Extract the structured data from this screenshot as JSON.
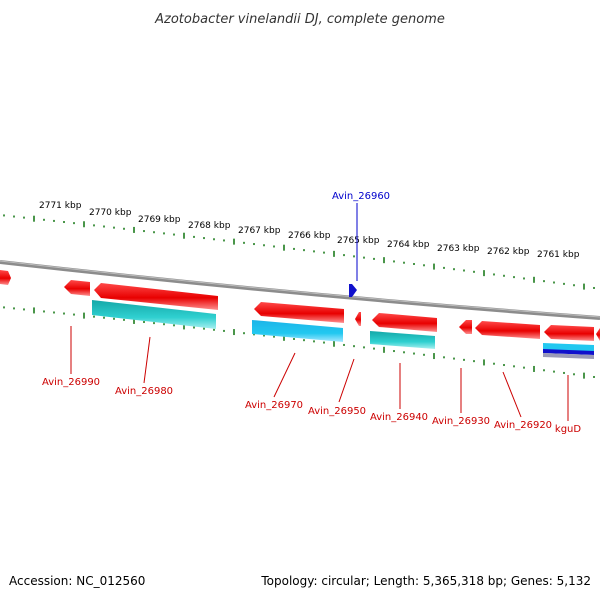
{
  "title": "Azotobacter vinelandii DJ, complete genome",
  "footer": {
    "accession": "Accession: NC_012560",
    "stats": "Topology: circular; Length: 5,365,318 bp; Genes: 5,132"
  },
  "colors": {
    "backbone": "#8c8c8c",
    "tick": "#1e7d1e",
    "gene_red": "#ee0000",
    "gene_cyan": "#22c8c8",
    "gene_blue": "#1010cc",
    "label_red": "#cc0000",
    "label_blue": "#0000cc"
  },
  "scale_labels": [
    "2771 kbp",
    "2770 kbp",
    "2769 kbp",
    "2768 kbp",
    "2767 kbp",
    "2766 kbp",
    "2765 kbp",
    "2764 kbp",
    "2763 kbp",
    "2762 kbp",
    "2761 kbp"
  ],
  "genes": [
    {
      "name": "Avin_26960",
      "color": "blue"
    },
    {
      "name": "Avin_26990",
      "color": "red"
    },
    {
      "name": "Avin_26980",
      "color": "red"
    },
    {
      "name": "Avin_26970",
      "color": "red"
    },
    {
      "name": "Avin_26950",
      "color": "red"
    },
    {
      "name": "Avin_26940",
      "color": "red"
    },
    {
      "name": "Avin_26930",
      "color": "red"
    },
    {
      "name": "Avin_26920",
      "color": "red"
    },
    {
      "name": "kguD",
      "color": "red"
    }
  ]
}
